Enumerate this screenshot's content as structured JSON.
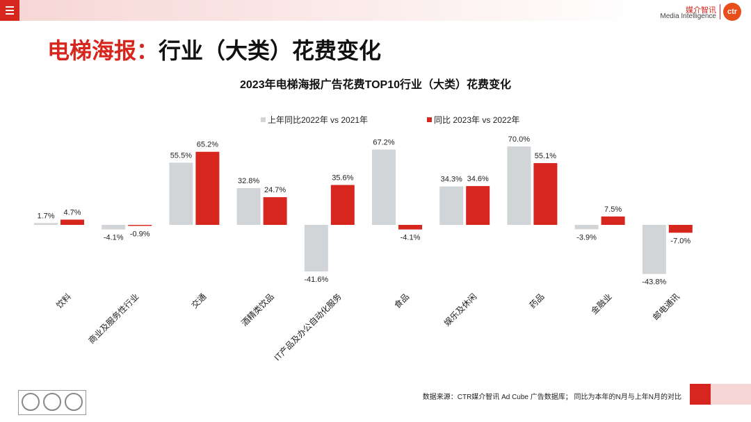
{
  "header": {
    "menu_icon": "hamburger-menu-icon",
    "logo": {
      "cn": "媒介智讯",
      "en": "Media Intelligence",
      "mark": "ctr"
    }
  },
  "page_title": {
    "prefix": "电梯海报：",
    "rest": "行业（大类）花费变化"
  },
  "colors": {
    "series_2022": "#d2d5d7",
    "series_2023": "#d7261e",
    "accent": "#d7261e"
  },
  "chart_data": {
    "type": "bar",
    "title": "2023年电梯海报广告花费TOP10行业（大类）花费变化",
    "categories": [
      "饮料",
      "商业及服务性行业",
      "交通",
      "酒精类饮品",
      "IT产品及办公自动化服务",
      "食品",
      "娱乐及休闲",
      "药品",
      "金融业",
      "邮电通讯"
    ],
    "series": [
      {
        "name": "上年同比2022年 vs 2021年",
        "values": [
          1.7,
          -4.1,
          55.5,
          32.8,
          -41.6,
          67.2,
          34.3,
          70.0,
          -3.9,
          -43.8
        ]
      },
      {
        "name": "同比 2023年 vs 2022年",
        "values": [
          4.7,
          -0.9,
          65.2,
          24.7,
          35.6,
          -4.1,
          34.6,
          55.1,
          7.5,
          -7.0
        ]
      }
    ],
    "value_suffix": "%",
    "ylim": [
      -50,
      75
    ],
    "legend": "top",
    "grid": false
  },
  "footer": {
    "source": "数据来源：CTR媒介智讯 Ad Cube 广告数据库；  同比为本年的N月与上年N月的对比"
  }
}
